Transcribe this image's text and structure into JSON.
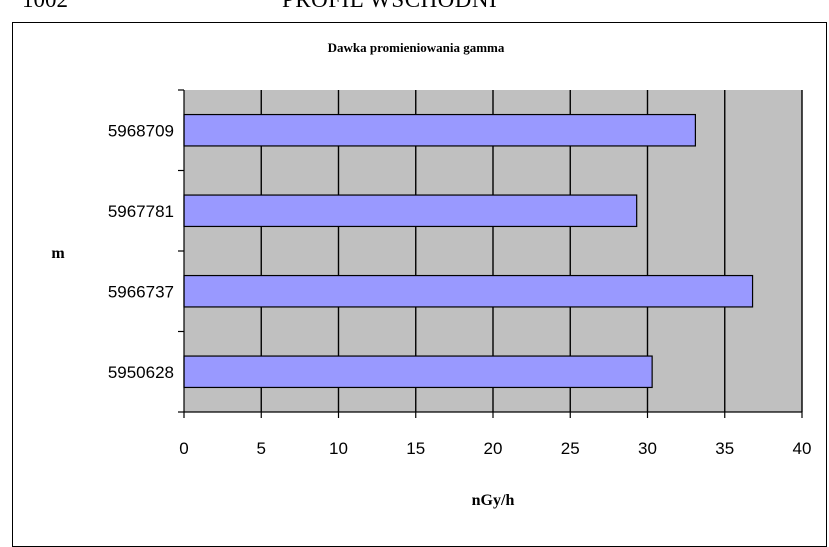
{
  "header": {
    "left": "1002",
    "right": "PROFIL WSCHODNI"
  },
  "chart_data": {
    "type": "bar",
    "orientation": "horizontal",
    "title": "Dawka promieniowania gamma",
    "xlabel": "nGy/h",
    "ylabel": "m",
    "categories": [
      "5968709",
      "5967781",
      "5966737",
      "5950628"
    ],
    "values": [
      33.1,
      29.3,
      36.8,
      30.3
    ],
    "xlim": [
      0,
      40
    ],
    "xticks": [
      0,
      5,
      10,
      15,
      20,
      25,
      30,
      35,
      40
    ],
    "grid": true,
    "colors": {
      "bar_fill": "#9999ff",
      "plot_bg": "#c0c0c0",
      "bar_stroke": "#000000"
    }
  }
}
